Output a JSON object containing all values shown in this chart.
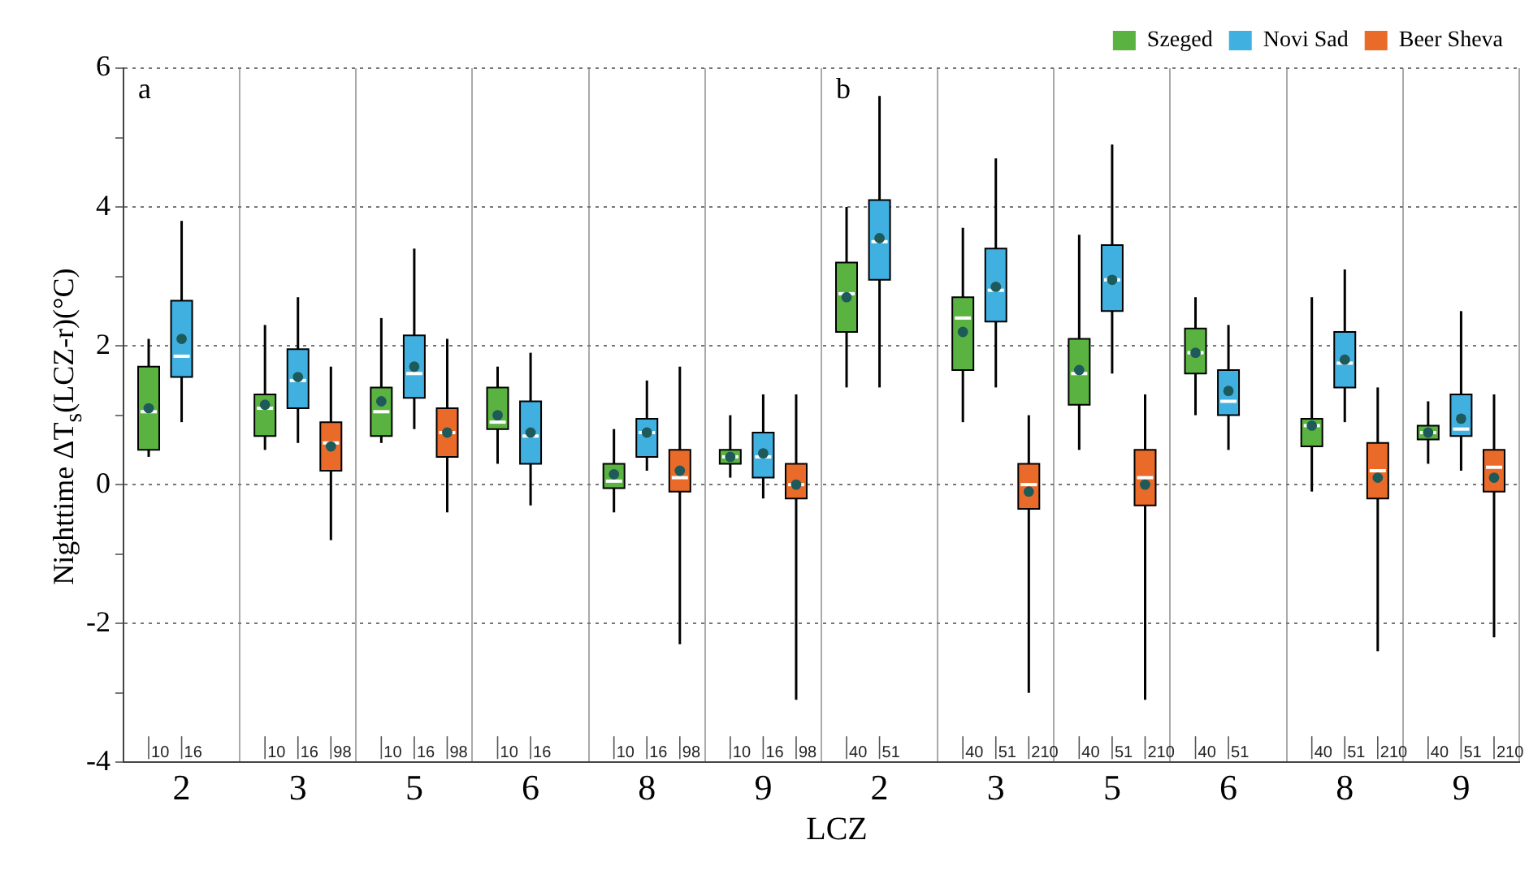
{
  "chart_data": {
    "type": "box",
    "xlabel": "LCZ",
    "ylabel": "Nighttime ΔT$_{s}$(LCZ-r)(°C)",
    "annotations": [
      "a",
      "b"
    ],
    "categories": [
      "2",
      "3",
      "5",
      "6",
      "8",
      "9",
      "2",
      "3",
      "5",
      "6",
      "8",
      "9"
    ],
    "ylim": [
      -4,
      6
    ],
    "yticks": [
      -4,
      {
        "value": -3,
        "label": null
      },
      -2,
      {
        "value": -1,
        "label": null
      },
      0,
      {
        "value": 1,
        "label": null
      },
      2,
      {
        "value": 3,
        "label": null
      },
      4,
      {
        "value": 5,
        "label": null
      },
      6
    ],
    "grid": true,
    "legend": "top right",
    "series": [
      {
        "name": "Szeged",
        "color": "#5ab340",
        "value_labels": [
          "10",
          "10",
          "10",
          "10",
          "10",
          "10",
          "40",
          "40",
          "40",
          "40",
          "40",
          "40"
        ],
        "boxes": [
          {
            "low": 0.4,
            "q1": 0.5,
            "median": 1.05,
            "q3": 1.7,
            "high": 2.1,
            "mean": 1.1
          },
          {
            "low": 0.5,
            "q1": 0.7,
            "median": 1.1,
            "q3": 1.3,
            "high": 2.3,
            "mean": 1.15
          },
          {
            "low": 0.6,
            "q1": 0.7,
            "median": 1.05,
            "q3": 1.4,
            "high": 2.4,
            "mean": 1.2
          },
          {
            "low": 0.3,
            "q1": 0.8,
            "median": 0.9,
            "q3": 1.4,
            "high": 1.7,
            "mean": 1.0
          },
          {
            "low": -0.4,
            "q1": -0.05,
            "median": 0.05,
            "q3": 0.3,
            "high": 0.8,
            "mean": 0.15
          },
          {
            "low": 0.1,
            "q1": 0.3,
            "median": 0.4,
            "q3": 0.5,
            "high": 1.0,
            "mean": 0.4
          },
          {
            "low": 1.4,
            "q1": 2.2,
            "median": 2.75,
            "q3": 3.2,
            "high": 4.0,
            "mean": 2.7
          },
          {
            "low": 0.9,
            "q1": 1.65,
            "median": 2.4,
            "q3": 2.7,
            "high": 3.7,
            "mean": 2.2
          },
          {
            "low": 0.5,
            "q1": 1.15,
            "median": 1.6,
            "q3": 2.1,
            "high": 3.6,
            "mean": 1.65
          },
          {
            "low": 1.0,
            "q1": 1.6,
            "median": 1.9,
            "q3": 2.25,
            "high": 2.7,
            "mean": 1.9
          },
          {
            "low": -0.1,
            "q1": 0.55,
            "median": 0.85,
            "q3": 0.95,
            "high": 2.7,
            "mean": 0.85
          },
          {
            "low": 0.3,
            "q1": 0.65,
            "median": 0.75,
            "q3": 0.85,
            "high": 1.2,
            "mean": 0.75
          }
        ]
      },
      {
        "name": "Novi Sad",
        "color": "#3fb0e0",
        "value_labels": [
          "16",
          "16",
          "16",
          "16",
          "16",
          "16",
          "51",
          "51",
          "51",
          "51",
          "51",
          "51"
        ],
        "boxes": [
          {
            "low": 0.9,
            "q1": 1.55,
            "median": 1.85,
            "q3": 2.65,
            "high": 3.8,
            "mean": 2.1
          },
          {
            "low": 0.6,
            "q1": 1.1,
            "median": 1.5,
            "q3": 1.95,
            "high": 2.7,
            "mean": 1.55
          },
          {
            "low": 0.8,
            "q1": 1.25,
            "median": 1.6,
            "q3": 2.15,
            "high": 3.4,
            "mean": 1.7
          },
          {
            "low": -0.3,
            "q1": 0.3,
            "median": 0.7,
            "q3": 1.2,
            "high": 1.9,
            "mean": 0.75
          },
          {
            "low": 0.2,
            "q1": 0.4,
            "median": 0.75,
            "q3": 0.95,
            "high": 1.5,
            "mean": 0.75
          },
          {
            "low": -0.2,
            "q1": 0.1,
            "median": 0.4,
            "q3": 0.75,
            "high": 1.3,
            "mean": 0.45
          },
          {
            "low": 1.4,
            "q1": 2.95,
            "median": 3.5,
            "q3": 4.1,
            "high": 5.6,
            "mean": 3.55
          },
          {
            "low": 1.4,
            "q1": 2.35,
            "median": 2.8,
            "q3": 3.4,
            "high": 4.7,
            "mean": 2.85
          },
          {
            "low": 1.6,
            "q1": 2.5,
            "median": 2.95,
            "q3": 3.45,
            "high": 4.9,
            "mean": 2.95
          },
          {
            "low": 0.5,
            "q1": 1.0,
            "median": 1.2,
            "q3": 1.65,
            "high": 2.3,
            "mean": 1.35
          },
          {
            "low": 0.9,
            "q1": 1.4,
            "median": 1.75,
            "q3": 2.2,
            "high": 3.1,
            "mean": 1.8
          },
          {
            "low": 0.2,
            "q1": 0.7,
            "median": 0.8,
            "q3": 1.3,
            "high": 2.5,
            "mean": 0.95
          }
        ]
      },
      {
        "name": "Beer Sheva",
        "color": "#ea6a2a",
        "value_labels": [
          null,
          "98",
          "98",
          null,
          "98",
          "98",
          null,
          "210",
          "210",
          null,
          "210",
          "210"
        ],
        "boxes": [
          null,
          {
            "low": -0.8,
            "q1": 0.2,
            "median": 0.6,
            "q3": 0.9,
            "high": 1.7,
            "mean": 0.55
          },
          {
            "low": -0.4,
            "q1": 0.4,
            "median": 0.75,
            "q3": 1.1,
            "high": 2.1,
            "mean": 0.75
          },
          null,
          {
            "low": -2.3,
            "q1": -0.1,
            "median": 0.1,
            "q3": 0.5,
            "high": 1.7,
            "mean": 0.2
          },
          {
            "low": -3.1,
            "q1": -0.2,
            "median": 0,
            "q3": 0.3,
            "high": 1.3,
            "mean": 0
          },
          null,
          {
            "low": -3.0,
            "q1": -0.35,
            "median": 0,
            "q3": 0.3,
            "high": 1.0,
            "mean": -0.1
          },
          {
            "low": -3.1,
            "q1": -0.3,
            "median": 0.1,
            "q3": 0.5,
            "high": 1.3,
            "mean": 0
          },
          null,
          {
            "low": -2.4,
            "q1": -0.2,
            "median": 0.2,
            "q3": 0.6,
            "high": 1.4,
            "mean": 0.1
          },
          {
            "low": -2.2,
            "q1": -0.1,
            "median": 0.25,
            "q3": 0.5,
            "high": 1.3,
            "mean": 0.1
          }
        ]
      }
    ]
  }
}
